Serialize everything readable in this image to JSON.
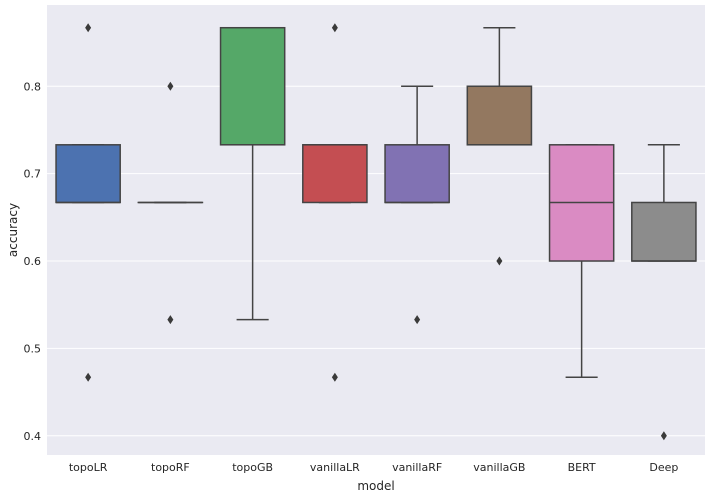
{
  "chart_data": {
    "type": "boxplot",
    "title": "",
    "xlabel": "model",
    "ylabel": "accuracy",
    "ylim": [
      0.378,
      0.893
    ],
    "yticks": [
      0.4,
      0.5,
      0.6,
      0.7,
      0.8
    ],
    "ytick_labels": [
      "0.4",
      "0.5",
      "0.6",
      "0.7",
      "0.8"
    ],
    "grid": true,
    "categories": [
      "topoLR",
      "topoRF",
      "topoGB",
      "vanillaLR",
      "vanillaRF",
      "vanillaGB",
      "BERT",
      "Deep"
    ],
    "colors": [
      "#4c72b0",
      "#7a9ac7",
      "#55a868",
      "#c44e52",
      "#8172b3",
      "#937860",
      "#da8bc3",
      "#8c8c8c"
    ],
    "boxes": [
      {
        "name": "topoLR",
        "whisker_low": 0.667,
        "q1": 0.667,
        "median": 0.667,
        "q3": 0.733,
        "whisker_high": 0.733,
        "outliers": [
          0.867,
          0.467
        ]
      },
      {
        "name": "topoRF",
        "whisker_low": 0.667,
        "q1": 0.667,
        "median": 0.667,
        "q3": 0.667,
        "whisker_high": 0.667,
        "outliers": [
          0.8,
          0.533
        ]
      },
      {
        "name": "topoGB",
        "whisker_low": 0.533,
        "q1": 0.733,
        "median": 0.733,
        "q3": 0.867,
        "whisker_high": 0.867,
        "outliers": []
      },
      {
        "name": "vanillaLR",
        "whisker_low": 0.667,
        "q1": 0.667,
        "median": 0.733,
        "q3": 0.733,
        "whisker_high": 0.733,
        "outliers": [
          0.867,
          0.467
        ]
      },
      {
        "name": "vanillaRF",
        "whisker_low": 0.667,
        "q1": 0.667,
        "median": 0.667,
        "q3": 0.733,
        "whisker_high": 0.8,
        "outliers": [
          0.533
        ]
      },
      {
        "name": "vanillaGB",
        "whisker_low": 0.733,
        "q1": 0.733,
        "median": 0.733,
        "q3": 0.8,
        "whisker_high": 0.867,
        "outliers": [
          0.6
        ]
      },
      {
        "name": "BERT",
        "whisker_low": 0.467,
        "q1": 0.6,
        "median": 0.667,
        "q3": 0.733,
        "whisker_high": 0.733,
        "outliers": []
      },
      {
        "name": "Deep",
        "whisker_low": 0.6,
        "q1": 0.6,
        "median": 0.6,
        "q3": 0.667,
        "whisker_high": 0.733,
        "outliers": [
          0.4
        ]
      }
    ]
  }
}
